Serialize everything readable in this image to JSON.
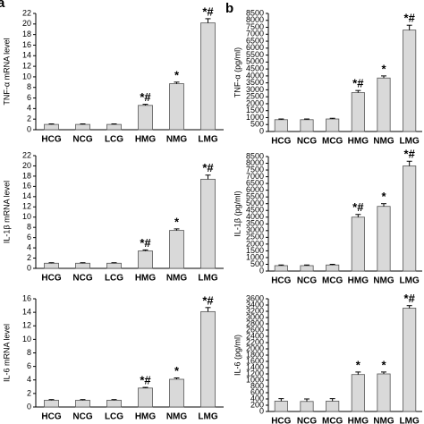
{
  "panel_labels": [
    "a",
    "b"
  ],
  "chart_data": [
    {
      "type": "bar",
      "ylabel": "TNF-α mRNA level",
      "categories": [
        "HCG",
        "NCG",
        "LCG",
        "HMG",
        "NMG",
        "LMG"
      ],
      "values": [
        1,
        1,
        1,
        4.6,
        8.7,
        20.2
      ],
      "errors": [
        0.1,
        0.1,
        0.1,
        0.2,
        0.3,
        0.8
      ],
      "color": "#d9d9d9",
      "ylim": [
        0,
        22
      ],
      "yticks": [
        0,
        2,
        4,
        6,
        8,
        10,
        12,
        14,
        16,
        18,
        20,
        22
      ],
      "annotations": [
        {
          "category": "HMG",
          "text": "*#"
        },
        {
          "category": "NMG",
          "text": "*"
        },
        {
          "category": "LMG",
          "text": "*#"
        }
      ]
    },
    {
      "type": "bar",
      "ylabel": "IL-1β mRNA level",
      "categories": [
        "HCG",
        "NCG",
        "LCG",
        "HMG",
        "NMG",
        "LMG"
      ],
      "values": [
        1,
        1,
        1,
        3.4,
        7.4,
        17.4
      ],
      "errors": [
        0.1,
        0.1,
        0.1,
        0.2,
        0.3,
        0.8
      ],
      "color": "#d9d9d9",
      "ylim": [
        0,
        22
      ],
      "yticks": [
        0,
        2,
        4,
        6,
        8,
        10,
        12,
        14,
        16,
        18,
        20,
        22
      ],
      "annotations": [
        {
          "category": "HMG",
          "text": "*#"
        },
        {
          "category": "NMG",
          "text": "*"
        },
        {
          "category": "LMG",
          "text": "*#"
        }
      ]
    },
    {
      "type": "bar",
      "ylabel": "IL-6 mRNA level",
      "categories": [
        "HCG",
        "NCG",
        "LCG",
        "HMG",
        "NMG",
        "LMG"
      ],
      "values": [
        1,
        1,
        1,
        2.8,
        4.1,
        14.1
      ],
      "errors": [
        0.1,
        0.1,
        0.1,
        0.1,
        0.2,
        0.6
      ],
      "color": "#d9d9d9",
      "ylim": [
        0,
        16
      ],
      "yticks": [
        0,
        2,
        4,
        6,
        8,
        10,
        12,
        14,
        16
      ],
      "annotations": [
        {
          "category": "HMG",
          "text": "*#"
        },
        {
          "category": "NMG",
          "text": "*"
        },
        {
          "category": "LMG",
          "text": "*#"
        }
      ]
    },
    {
      "type": "bar",
      "ylabel": "TNF-α (pg/ml)",
      "categories": [
        "HCG",
        "NCG",
        "MCG",
        "HMG",
        "NMG",
        "LMG"
      ],
      "values": [
        850,
        850,
        900,
        2800,
        3850,
        7300
      ],
      "errors": [
        50,
        50,
        50,
        150,
        150,
        350
      ],
      "color": "#d9d9d9",
      "ylim": [
        0,
        8500
      ],
      "yticks": [
        0,
        500,
        1000,
        1500,
        2000,
        2500,
        3000,
        3500,
        4000,
        4500,
        5000,
        5500,
        6000,
        6500,
        7000,
        7500,
        8000,
        8500
      ],
      "annotations": [
        {
          "category": "HMG",
          "text": "*#"
        },
        {
          "category": "NMG",
          "text": "*"
        },
        {
          "category": "LMG",
          "text": "*#"
        }
      ]
    },
    {
      "type": "bar",
      "ylabel": "IL-1β (pg/ml)",
      "categories": [
        "HCG",
        "NCG",
        "MCG",
        "HMG",
        "NMG",
        "LMG"
      ],
      "values": [
        400,
        400,
        450,
        4000,
        4800,
        7800
      ],
      "errors": [
        50,
        50,
        50,
        200,
        200,
        350
      ],
      "color": "#d9d9d9",
      "ylim": [
        0,
        8500
      ],
      "yticks": [
        0,
        500,
        1000,
        1500,
        2000,
        2500,
        3000,
        3500,
        4000,
        4500,
        5000,
        5500,
        6000,
        6500,
        7000,
        7500,
        8000,
        8500
      ],
      "annotations": [
        {
          "category": "HMG",
          "text": "*#"
        },
        {
          "category": "NMG",
          "text": "*"
        },
        {
          "category": "LMG",
          "text": "*#"
        }
      ]
    },
    {
      "type": "bar",
      "ylabel": "IL-6 (pg/ml)",
      "categories": [
        "HCG",
        "NCG",
        "MCG",
        "HMG",
        "NMG",
        "LMG"
      ],
      "values": [
        330,
        320,
        330,
        1180,
        1200,
        3300
      ],
      "errors": [
        80,
        80,
        80,
        80,
        60,
        80
      ],
      "color": "#d9d9d9",
      "ylim": [
        0,
        3600
      ],
      "yticks": [
        0,
        200,
        400,
        600,
        800,
        1000,
        1200,
        1400,
        1600,
        1800,
        2000,
        2200,
        2400,
        2600,
        2800,
        3000,
        3200,
        3400,
        3600
      ],
      "annotations": [
        {
          "category": "HMG",
          "text": "*"
        },
        {
          "category": "NMG",
          "text": "*"
        },
        {
          "category": "LMG",
          "text": "*#"
        }
      ]
    }
  ]
}
